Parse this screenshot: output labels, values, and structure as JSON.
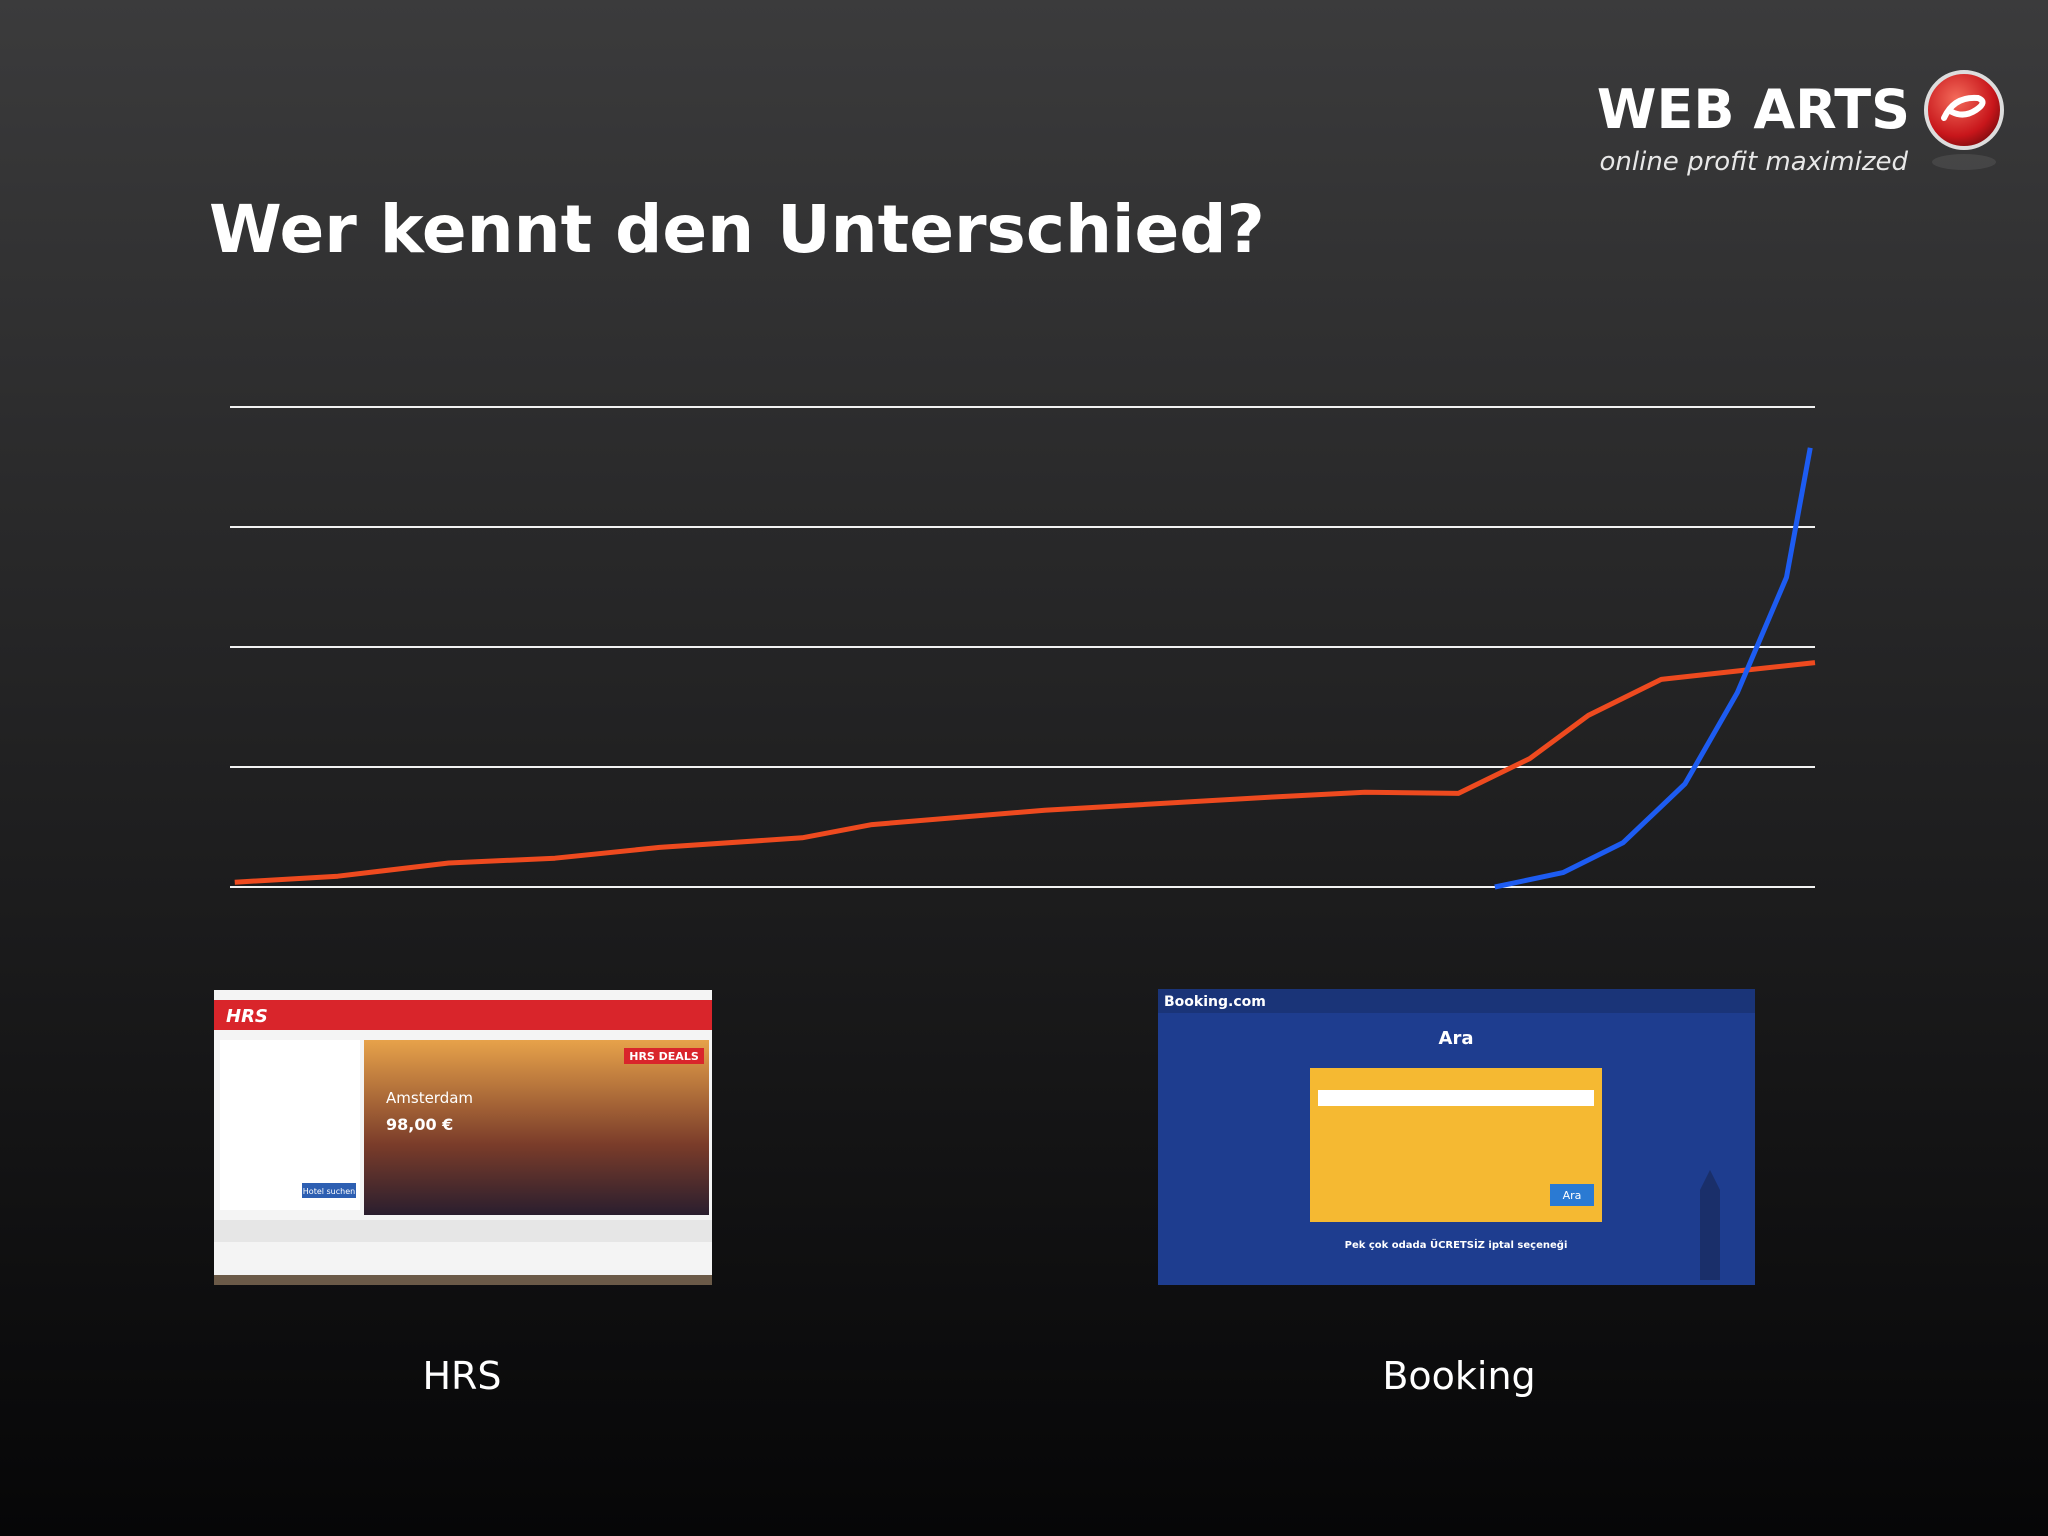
{
  "chart_data": {
    "type": "line",
    "title": "Wer kennt den Unterschied?",
    "xlim": [
      0,
      100
    ],
    "ylim": [
      0,
      4
    ],
    "yticks": [
      0,
      1,
      2,
      3,
      4
    ],
    "grid": true,
    "series": [
      {
        "name": "HRS",
        "color": "#ee4a1f",
        "x": [
          0.3,
          6.8,
          13.8,
          20.5,
          27.1,
          36.1,
          40.5,
          51.4,
          65.8,
          71.6,
          77.5,
          82.0,
          85.7,
          90.3,
          95.1,
          100
        ],
        "values": [
          0.04,
          0.09,
          0.2,
          0.24,
          0.33,
          0.41,
          0.52,
          0.64,
          0.75,
          0.79,
          0.78,
          1.07,
          1.43,
          1.73,
          1.8,
          1.87
        ]
      },
      {
        "name": "Booking",
        "color": "#1d5cf2",
        "x": [
          79.8,
          84.1,
          87.9,
          91.8,
          95.1,
          98.2,
          99.7
        ],
        "values": [
          0,
          0.12,
          0.37,
          0.86,
          1.62,
          2.58,
          3.66
        ]
      }
    ]
  },
  "logo": {
    "name": "WEB ARTS",
    "tagline": "online profit maximized"
  },
  "thumbnails": {
    "hrs": {
      "brand": "HRS",
      "deals": "HRS DEALS",
      "city": "Amsterdam",
      "price": "98,00 €",
      "button": "Hotel suchen"
    },
    "booking": {
      "brand": "Booking.com",
      "heading": "Ara",
      "button": "Ara",
      "note": "Pek çok odada ÜCRETSİZ iptal seçeneği"
    }
  }
}
